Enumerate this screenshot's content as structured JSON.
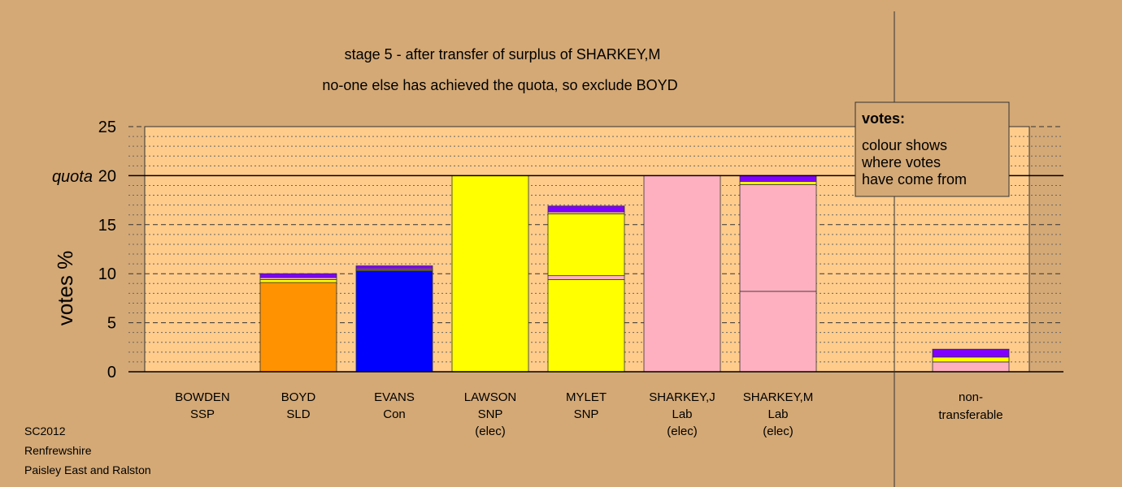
{
  "chart_data": {
    "type": "bar",
    "stacked": true,
    "title": "stage 5 - after transfer of surplus of SHARKEY,M",
    "subtitle": "no-one else has achieved the quota, so exclude BOYD",
    "ylabel": "votes %",
    "ylim": [
      0,
      25
    ],
    "yticks": [
      0,
      5,
      10,
      15,
      20,
      25
    ],
    "quota": {
      "label": "quota",
      "value": 20
    },
    "grid": true,
    "colors": {
      "background": "#d4a976",
      "plot": "#ffcc8c",
      "SSP": "#ff4040",
      "SLD": "#ff9200",
      "Con": "#0000ff",
      "SNP": "#ffff00",
      "Lab": "#ffb0c0",
      "Ind": "#8000ff",
      "nontransferable": "#ffb0c0"
    },
    "candidates": [
      {
        "name": "BOWDEN",
        "party": "SSP",
        "status": "",
        "segments": []
      },
      {
        "name": "BOYD",
        "party": "SLD",
        "status": "",
        "segments": [
          {
            "value": 9.1,
            "color": "#ff9200"
          },
          {
            "value": 0.3,
            "color": "#ffff00"
          },
          {
            "value": 0.2,
            "color": "#ffb0c0"
          },
          {
            "value": 0.4,
            "color": "#8000ff"
          }
        ]
      },
      {
        "name": "EVANS",
        "party": "Con",
        "status": "",
        "segments": [
          {
            "value": 10.3,
            "color": "#0000ff"
          },
          {
            "value": 0.1,
            "color": "#ffff00"
          },
          {
            "value": 0.1,
            "color": "#ffb0c0"
          },
          {
            "value": 0.3,
            "color": "#8000ff"
          }
        ]
      },
      {
        "name": "LAWSON",
        "party": "SNP",
        "status": "(elec)",
        "segments": [
          {
            "value": 20,
            "color": "#ffff00"
          }
        ]
      },
      {
        "name": "MYLET",
        "party": "SNP",
        "status": "",
        "segments": [
          {
            "value": 9.4,
            "color": "#ffff00"
          },
          {
            "value": 0.4,
            "color": "#ffb0c0"
          },
          {
            "value": 6.3,
            "color": "#ffff00"
          },
          {
            "value": 0.2,
            "color": "#ffb0c0"
          },
          {
            "value": 0.6,
            "color": "#8000ff"
          }
        ]
      },
      {
        "name": "SHARKEY,J",
        "party": "Lab",
        "status": "(elec)",
        "segments": [
          {
            "value": 20,
            "color": "#ffb0c0"
          }
        ]
      },
      {
        "name": "SHARKEY,M",
        "party": "Lab",
        "status": "(elec)",
        "segments": [
          {
            "value": 8.2,
            "color": "#ffb0c0"
          },
          {
            "value": 10.9,
            "color": "#ffb0c0"
          },
          {
            "value": 0.3,
            "color": "#ffff00"
          },
          {
            "value": 0.6,
            "color": "#8000ff"
          }
        ]
      }
    ],
    "nontransferable": {
      "label_line1": "non-",
      "label_line2": "transferable",
      "segments": [
        {
          "value": 1.0,
          "color": "#ffb0c0"
        },
        {
          "value": 0.5,
          "color": "#ffff00"
        },
        {
          "value": 0.8,
          "color": "#8000ff"
        }
      ]
    },
    "legend": {
      "placement": "top-right",
      "title": "votes:",
      "lines": [
        "colour shows",
        "where votes",
        "have come from"
      ]
    }
  },
  "footer": {
    "line1": "SC2012",
    "line2": "Renfrewshire",
    "line3": "Paisley East and Ralston"
  }
}
